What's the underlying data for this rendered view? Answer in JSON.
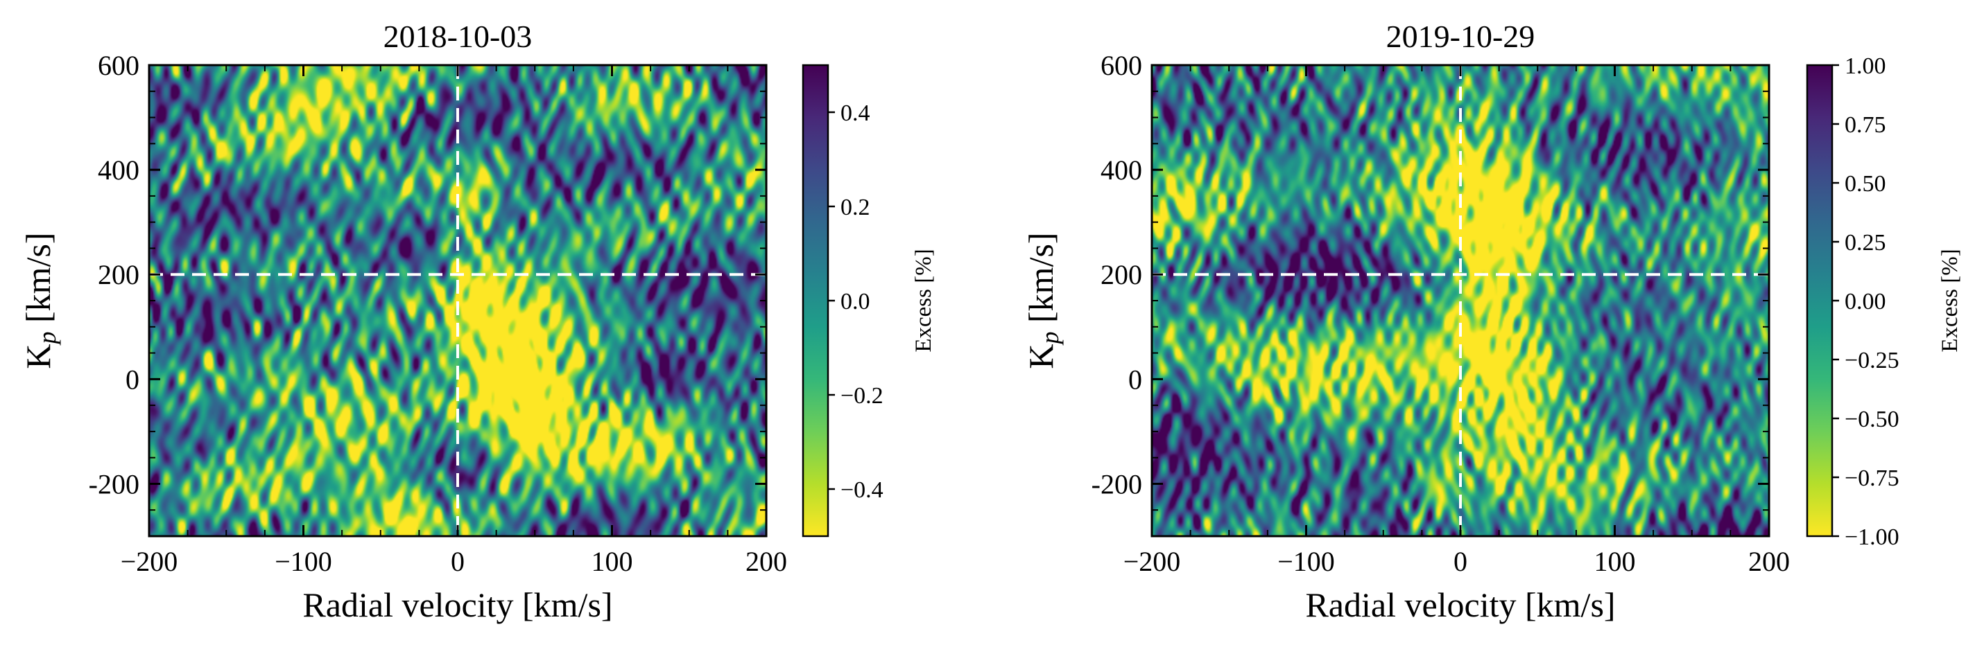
{
  "figure": {
    "palette": {
      "viridis_stops": [
        "#440154",
        "#482878",
        "#3e4989",
        "#31688e",
        "#26828e",
        "#1f9e89",
        "#35b779",
        "#6ece58",
        "#b5de2b",
        "#fde725"
      ],
      "guide_line": "#ffffff",
      "frame": "#000000"
    }
  },
  "chart_data": [
    {
      "type": "heatmap",
      "title": "2018-10-03",
      "xlabel": "Radial velocity [km/s]",
      "ylabel": "K",
      "ylabel_sub": "p",
      "ylabel_suffix": " [km/s]",
      "xlim": [
        -200,
        200
      ],
      "ylim": [
        -300,
        600
      ],
      "x_ticks": [
        -200,
        -100,
        0,
        100,
        200
      ],
      "x_tick_labels": [
        "−200",
        "−100",
        "0",
        "100",
        "200"
      ],
      "y_ticks": [
        -200,
        0,
        200,
        400,
        600
      ],
      "y_tick_labels": [
        "-200",
        "0",
        "200",
        "400",
        "600"
      ],
      "guide_x": 0,
      "guide_y": 200,
      "colorbar": {
        "label": "Excess [%]",
        "range": [
          -0.5,
          0.5
        ],
        "reversed": true,
        "ticks": [
          0.4,
          0.2,
          0.0,
          -0.2,
          -0.4
        ],
        "tick_labels": [
          "0.4",
          "0.2",
          "0.0",
          "−0.2",
          "−0.4"
        ]
      },
      "texture": {
        "seed": 11,
        "blobs": [
          {
            "x": 10,
            "y": 250,
            "sx": 14,
            "sy": 130,
            "amp": -0.55,
            "tilt": 0
          },
          {
            "x": 32,
            "y": 40,
            "sx": 22,
            "sy": 110,
            "amp": -0.55,
            "tilt": 0.35
          },
          {
            "x": 50,
            "y": -60,
            "sx": 15,
            "sy": 90,
            "amp": -0.45,
            "tilt": 0.25
          },
          {
            "x": -75,
            "y": -70,
            "sx": 30,
            "sy": 110,
            "amp": -0.45,
            "tilt": -0.9
          },
          {
            "x": -40,
            "y": -230,
            "sx": 18,
            "sy": 80,
            "amp": -0.45,
            "tilt": 0
          },
          {
            "x": 130,
            "y": 20,
            "sx": 12,
            "sy": 30,
            "amp": 0.45,
            "tilt": 0
          },
          {
            "x": -90,
            "y": 20,
            "sx": 10,
            "sy": 25,
            "amp": 0.35,
            "tilt": 0
          },
          {
            "x": -150,
            "y": -60,
            "sx": 45,
            "sy": 130,
            "amp": 0.2,
            "tilt": 0
          },
          {
            "x": 150,
            "y": 400,
            "sx": 45,
            "sy": 160,
            "amp": 0.1,
            "tilt": 0
          },
          {
            "x": -130,
            "y": 420,
            "sx": 40,
            "sy": 120,
            "amp": 0.1,
            "tilt": 0
          }
        ]
      }
    },
    {
      "type": "heatmap",
      "title": "2019-10-29",
      "xlabel": "Radial velocity [km/s]",
      "ylabel": "K",
      "ylabel_sub": "p",
      "ylabel_suffix": " [km/s]",
      "xlim": [
        -200,
        200
      ],
      "ylim": [
        -300,
        600
      ],
      "x_ticks": [
        -200,
        -100,
        0,
        100,
        200
      ],
      "x_tick_labels": [
        "−200",
        "−100",
        "0",
        "100",
        "200"
      ],
      "y_ticks": [
        -200,
        0,
        200,
        400,
        600
      ],
      "y_tick_labels": [
        "-200",
        "0",
        "200",
        "400",
        "600"
      ],
      "guide_x": 0,
      "guide_y": 200,
      "colorbar": {
        "label": "Excess [%]",
        "range": [
          -1.0,
          1.0
        ],
        "reversed": true,
        "ticks": [
          1.0,
          0.75,
          0.5,
          0.25,
          0.0,
          -0.25,
          -0.5,
          -0.75,
          -1.0
        ],
        "tick_labels": [
          "1.00",
          "0.75",
          "0.50",
          "0.25",
          "0.00",
          "−0.25",
          "−0.50",
          "−0.75",
          "−1.00"
        ]
      },
      "texture": {
        "seed": 29,
        "blobs": [
          {
            "x": 20,
            "y": 120,
            "sx": 20,
            "sy": 190,
            "amp": -0.55,
            "tilt": 0.2
          },
          {
            "x": 45,
            "y": -70,
            "sx": 18,
            "sy": 90,
            "amp": -0.45,
            "tilt": 0.3
          },
          {
            "x": 0,
            "y": 470,
            "sx": 25,
            "sy": 110,
            "amp": -0.35,
            "tilt": 0
          },
          {
            "x": -15,
            "y": -220,
            "sx": 14,
            "sy": 60,
            "amp": -0.4,
            "tilt": 0
          },
          {
            "x": -180,
            "y": -20,
            "sx": 30,
            "sy": 90,
            "amp": 0.3,
            "tilt": 0
          },
          {
            "x": 140,
            "y": 20,
            "sx": 40,
            "sy": 140,
            "amp": 0.15,
            "tilt": 0
          },
          {
            "x": -120,
            "y": 350,
            "sx": 40,
            "sy": 120,
            "amp": 0.1,
            "tilt": 0
          }
        ]
      }
    }
  ]
}
